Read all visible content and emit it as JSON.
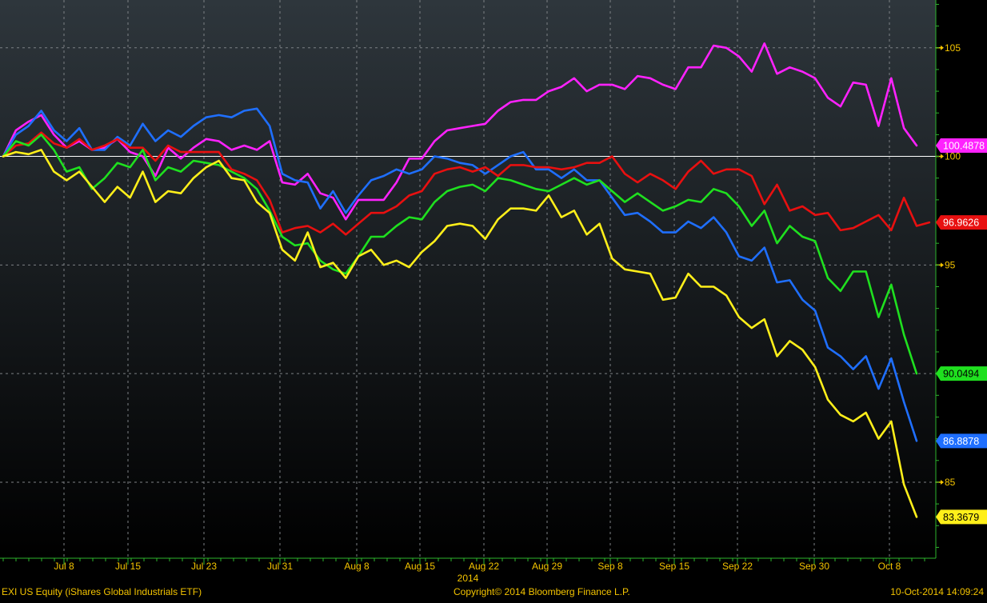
{
  "footer": {
    "ticker": "EXI US Equity (iShares Global Industrials ETF)",
    "copyright": "Copyright© 2014 Bloomberg Finance L.P.",
    "timestamp": "10-Oct-2014 14:09:24"
  },
  "colors": {
    "background_top": "#2e363c",
    "background_bottom": "#000000",
    "axis_text": "#f4c400",
    "axis_line": "#2db52d",
    "reference_line": "#ffffff",
    "grid": "#7d8185"
  },
  "chart_data": {
    "type": "line",
    "xlabel": "2014",
    "ylabel": "",
    "ylim": [
      81.5,
      107.2
    ],
    "grid": true,
    "y_axis_side": "right",
    "reference_line": 100,
    "x_ticks": [
      "Jul 8",
      "Jul 15",
      "Jul 23",
      "Jul 31",
      "Aug 8",
      "Aug 15",
      "Aug 22",
      "Aug 29",
      "Sep 8",
      "Sep 15",
      "Sep 22",
      "Sep 30",
      "Oct 8"
    ],
    "y_ticks": [
      85,
      95,
      100,
      105
    ],
    "series": [
      {
        "color": "#ff22ff",
        "last_value": "100.4878",
        "values": [
          100.0,
          101.2,
          101.6,
          101.9,
          101.0,
          100.4,
          100.7,
          100.3,
          100.4,
          100.8,
          100.2,
          100.0,
          99.1,
          100.4,
          99.9,
          100.4,
          100.8,
          100.7,
          100.3,
          100.5,
          100.3,
          100.7,
          98.8,
          98.7,
          99.2,
          98.3,
          98.1,
          97.1,
          98.0,
          98.0,
          98.0,
          98.8,
          99.9,
          99.9,
          100.7,
          101.2,
          101.3,
          101.4,
          101.5,
          102.1,
          102.5,
          102.6,
          102.6,
          103.0,
          103.2,
          103.6,
          103.0,
          103.3,
          103.3,
          103.1,
          103.7,
          103.6,
          103.3,
          103.1,
          104.1,
          104.1,
          105.1,
          105.0,
          104.6,
          103.9,
          105.2,
          103.8,
          104.1,
          103.9,
          103.6,
          102.7,
          102.3,
          103.4,
          103.3,
          101.4,
          103.6,
          101.3,
          100.5
        ]
      },
      {
        "color": "#1f6fff",
        "last_value": "86.8878",
        "values": [
          100.0,
          101.0,
          101.4,
          102.1,
          101.2,
          100.7,
          101.3,
          100.3,
          100.3,
          100.9,
          100.5,
          101.5,
          100.7,
          101.2,
          100.9,
          101.4,
          101.8,
          101.9,
          101.8,
          102.1,
          102.2,
          101.4,
          99.2,
          98.9,
          98.8,
          97.6,
          98.4,
          97.4,
          98.2,
          98.9,
          99.1,
          99.4,
          99.2,
          99.4,
          100.0,
          99.9,
          99.7,
          99.6,
          99.2,
          99.6,
          100.0,
          100.2,
          99.4,
          99.4,
          99.0,
          99.4,
          98.9,
          98.9,
          98.1,
          97.3,
          97.4,
          97.0,
          96.5,
          96.5,
          97.0,
          96.7,
          97.2,
          96.5,
          95.4,
          95.2,
          95.8,
          94.2,
          94.3,
          93.4,
          92.9,
          91.2,
          90.8,
          90.2,
          90.8,
          89.3,
          90.7,
          88.7,
          86.9
        ]
      },
      {
        "color": "#e81010",
        "last_value": "96.9626",
        "values": [
          100.0,
          100.5,
          100.6,
          101.1,
          100.6,
          100.4,
          100.8,
          100.3,
          100.5,
          100.8,
          100.4,
          100.4,
          99.8,
          100.5,
          100.2,
          100.2,
          100.2,
          100.2,
          99.4,
          99.2,
          98.9,
          98.0,
          96.5,
          96.7,
          96.8,
          96.5,
          96.9,
          96.4,
          96.9,
          97.4,
          97.4,
          97.7,
          98.2,
          98.4,
          99.2,
          99.4,
          99.5,
          99.3,
          99.5,
          99.1,
          99.6,
          99.6,
          99.5,
          99.5,
          99.4,
          99.5,
          99.7,
          99.7,
          100.0,
          99.2,
          98.8,
          99.2,
          98.9,
          98.5,
          99.3,
          99.8,
          99.2,
          99.4,
          99.4,
          99.1,
          97.8,
          98.7,
          97.5,
          97.7,
          97.3,
          97.4,
          96.6,
          96.7,
          97.0,
          97.3,
          96.6,
          98.1,
          96.8,
          96.96
        ]
      },
      {
        "color": "#1fe01f",
        "last_value": "90.0494",
        "values": [
          100.0,
          100.7,
          100.5,
          101.0,
          100.3,
          99.3,
          99.5,
          98.5,
          99.0,
          99.7,
          99.5,
          100.3,
          98.9,
          99.5,
          99.3,
          99.8,
          99.7,
          99.6,
          99.3,
          99.0,
          98.5,
          97.5,
          96.3,
          95.9,
          96.0,
          95.2,
          94.8,
          94.6,
          95.4,
          96.3,
          96.3,
          96.8,
          97.2,
          97.1,
          97.9,
          98.4,
          98.6,
          98.7,
          98.4,
          99.0,
          98.9,
          98.7,
          98.5,
          98.4,
          98.7,
          99.0,
          98.7,
          98.9,
          98.4,
          97.9,
          98.3,
          97.9,
          97.5,
          97.7,
          98.0,
          97.9,
          98.5,
          98.3,
          97.7,
          96.8,
          97.5,
          96.0,
          96.8,
          96.3,
          96.1,
          94.4,
          93.8,
          94.7,
          94.7,
          92.6,
          94.1,
          91.8,
          90.0
        ]
      },
      {
        "color": "#ffef1a",
        "last_value": "83.3679",
        "values": [
          100.0,
          100.2,
          100.1,
          100.3,
          99.3,
          98.9,
          99.3,
          98.6,
          97.9,
          98.6,
          98.1,
          99.3,
          97.9,
          98.4,
          98.3,
          99.0,
          99.5,
          99.8,
          99.0,
          98.9,
          97.9,
          97.4,
          95.7,
          95.2,
          96.5,
          94.9,
          95.1,
          94.4,
          95.4,
          95.7,
          95.0,
          95.2,
          94.9,
          95.6,
          96.1,
          96.8,
          96.9,
          96.8,
          96.2,
          97.1,
          97.6,
          97.6,
          97.5,
          98.2,
          97.2,
          97.5,
          96.4,
          96.9,
          95.3,
          94.8,
          94.7,
          94.6,
          93.4,
          93.5,
          94.6,
          94.0,
          94.0,
          93.6,
          92.6,
          92.1,
          92.5,
          90.8,
          91.5,
          91.1,
          90.3,
          88.8,
          88.1,
          87.8,
          88.2,
          87.0,
          87.8,
          84.9,
          83.4
        ]
      }
    ]
  }
}
